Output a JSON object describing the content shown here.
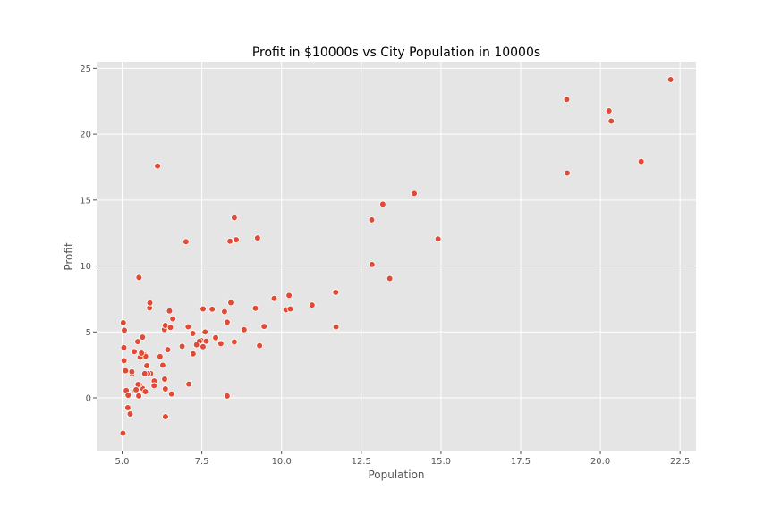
{
  "chart_data": {
    "type": "scatter",
    "title": "Profit in $10000s vs City Population in 10000s",
    "xlabel": "Population",
    "ylabel": "Profit",
    "xlim": [
      4.2,
      23.0
    ],
    "ylim": [
      -4.0,
      25.5
    ],
    "xticks": [
      5.0,
      7.5,
      10.0,
      12.5,
      15.0,
      17.5,
      20.0,
      22.5
    ],
    "xtick_labels": [
      "5.0",
      "7.5",
      "10.0",
      "12.5",
      "15.0",
      "17.5",
      "20.0",
      "22.5"
    ],
    "yticks": [
      0,
      5,
      10,
      15,
      20,
      25
    ],
    "ytick_labels": [
      "0",
      "5",
      "10",
      "15",
      "20",
      "25"
    ],
    "grid": true,
    "style": "ggplot",
    "colors": {
      "marker": "#E24A33",
      "marker_edge": "#ffffff",
      "plot_background": "#E5E5E5",
      "grid": "#ffffff",
      "text": "#555555"
    },
    "points": [
      {
        "x": 6.1101,
        "y": 17.592
      },
      {
        "x": 5.5277,
        "y": 9.1302
      },
      {
        "x": 8.5186,
        "y": 13.662
      },
      {
        "x": 7.0032,
        "y": 11.854
      },
      {
        "x": 5.8598,
        "y": 6.8233
      },
      {
        "x": 8.3829,
        "y": 11.886
      },
      {
        "x": 7.4764,
        "y": 4.3483
      },
      {
        "x": 8.5781,
        "y": 12.0
      },
      {
        "x": 6.4862,
        "y": 6.5987
      },
      {
        "x": 5.0546,
        "y": 3.8166
      },
      {
        "x": 5.7107,
        "y": 3.2522
      },
      {
        "x": 14.164,
        "y": 15.505
      },
      {
        "x": 5.734,
        "y": 3.1551
      },
      {
        "x": 8.4084,
        "y": 7.2258
      },
      {
        "x": 5.6407,
        "y": 0.71618
      },
      {
        "x": 5.3794,
        "y": 3.5129
      },
      {
        "x": 6.3654,
        "y": 5.3048
      },
      {
        "x": 5.1301,
        "y": 0.56077
      },
      {
        "x": 6.4296,
        "y": 3.6518
      },
      {
        "x": 7.0708,
        "y": 5.3893
      },
      {
        "x": 6.1891,
        "y": 3.1386
      },
      {
        "x": 20.27,
        "y": 21.767
      },
      {
        "x": 5.4901,
        "y": 4.263
      },
      {
        "x": 6.3261,
        "y": 5.1875
      },
      {
        "x": 5.5649,
        "y": 3.0825
      },
      {
        "x": 18.945,
        "y": 22.638
      },
      {
        "x": 12.828,
        "y": 13.501
      },
      {
        "x": 10.957,
        "y": 7.0467
      },
      {
        "x": 13.176,
        "y": 14.692
      },
      {
        "x": 22.203,
        "y": 24.147
      },
      {
        "x": 5.2524,
        "y": -1.22
      },
      {
        "x": 6.5894,
        "y": 5.9966
      },
      {
        "x": 9.2482,
        "y": 12.134
      },
      {
        "x": 5.8918,
        "y": 1.8495
      },
      {
        "x": 8.2111,
        "y": 6.5426
      },
      {
        "x": 7.9334,
        "y": 4.5623
      },
      {
        "x": 8.0959,
        "y": 4.1164
      },
      {
        "x": 5.6063,
        "y": 3.3928
      },
      {
        "x": 12.836,
        "y": 10.117
      },
      {
        "x": 6.3534,
        "y": 5.4974
      },
      {
        "x": 5.4069,
        "y": 0.55657
      },
      {
        "x": 6.8825,
        "y": 3.9115
      },
      {
        "x": 11.708,
        "y": 5.3854
      },
      {
        "x": 5.7737,
        "y": 2.4406
      },
      {
        "x": 7.8247,
        "y": 6.7318
      },
      {
        "x": 7.0931,
        "y": 1.0463
      },
      {
        "x": 5.0702,
        "y": 5.1337
      },
      {
        "x": 5.8014,
        "y": 1.844
      },
      {
        "x": 11.7,
        "y": 8.0043
      },
      {
        "x": 5.5416,
        "y": 1.0179
      },
      {
        "x": 7.5402,
        "y": 6.7504
      },
      {
        "x": 5.3077,
        "y": 1.8396
      },
      {
        "x": 7.4239,
        "y": 4.2885
      },
      {
        "x": 7.6031,
        "y": 4.9981
      },
      {
        "x": 6.3328,
        "y": 1.4233
      },
      {
        "x": 6.3589,
        "y": -1.4211
      },
      {
        "x": 6.2742,
        "y": 2.4756
      },
      {
        "x": 5.6397,
        "y": 4.6042
      },
      {
        "x": 9.3102,
        "y": 3.9624
      },
      {
        "x": 9.4536,
        "y": 5.4141
      },
      {
        "x": 8.8254,
        "y": 5.1694
      },
      {
        "x": 5.1793,
        "y": -0.74279
      },
      {
        "x": 21.279,
        "y": 17.929
      },
      {
        "x": 14.908,
        "y": 12.054
      },
      {
        "x": 18.959,
        "y": 17.054
      },
      {
        "x": 7.2182,
        "y": 4.8852
      },
      {
        "x": 8.2951,
        "y": 5.7442
      },
      {
        "x": 10.236,
        "y": 7.7754
      },
      {
        "x": 5.4994,
        "y": 1.0173
      },
      {
        "x": 20.341,
        "y": 20.992
      },
      {
        "x": 10.136,
        "y": 6.6799
      },
      {
        "x": 7.3345,
        "y": 4.0259
      },
      {
        "x": 6.0062,
        "y": 1.2784
      },
      {
        "x": 7.2259,
        "y": 3.3411
      },
      {
        "x": 5.0269,
        "y": -2.6807
      },
      {
        "x": 6.5479,
        "y": 0.29678
      },
      {
        "x": 7.5386,
        "y": 3.8845
      },
      {
        "x": 5.0365,
        "y": 5.7014
      },
      {
        "x": 10.274,
        "y": 6.7526
      },
      {
        "x": 5.1077,
        "y": 2.0576
      },
      {
        "x": 5.7292,
        "y": 0.47953
      },
      {
        "x": 5.1884,
        "y": 0.20421
      },
      {
        "x": 6.3557,
        "y": 0.67861
      },
      {
        "x": 9.7687,
        "y": 7.5435
      },
      {
        "x": 6.5159,
        "y": 5.3436
      },
      {
        "x": 8.5172,
        "y": 4.2415
      },
      {
        "x": 9.1802,
        "y": 6.7981
      },
      {
        "x": 6.002,
        "y": 0.92695
      },
      {
        "x": 5.5204,
        "y": 0.152
      },
      {
        "x": 5.0594,
        "y": 2.8214
      },
      {
        "x": 5.7077,
        "y": 1.8451
      },
      {
        "x": 7.6366,
        "y": 4.2959
      },
      {
        "x": 5.8707,
        "y": 7.2029
      },
      {
        "x": 5.3054,
        "y": 1.9869
      },
      {
        "x": 8.2934,
        "y": 0.14454
      },
      {
        "x": 13.394,
        "y": 9.0551
      },
      {
        "x": 5.4369,
        "y": 0.61705
      }
    ]
  }
}
